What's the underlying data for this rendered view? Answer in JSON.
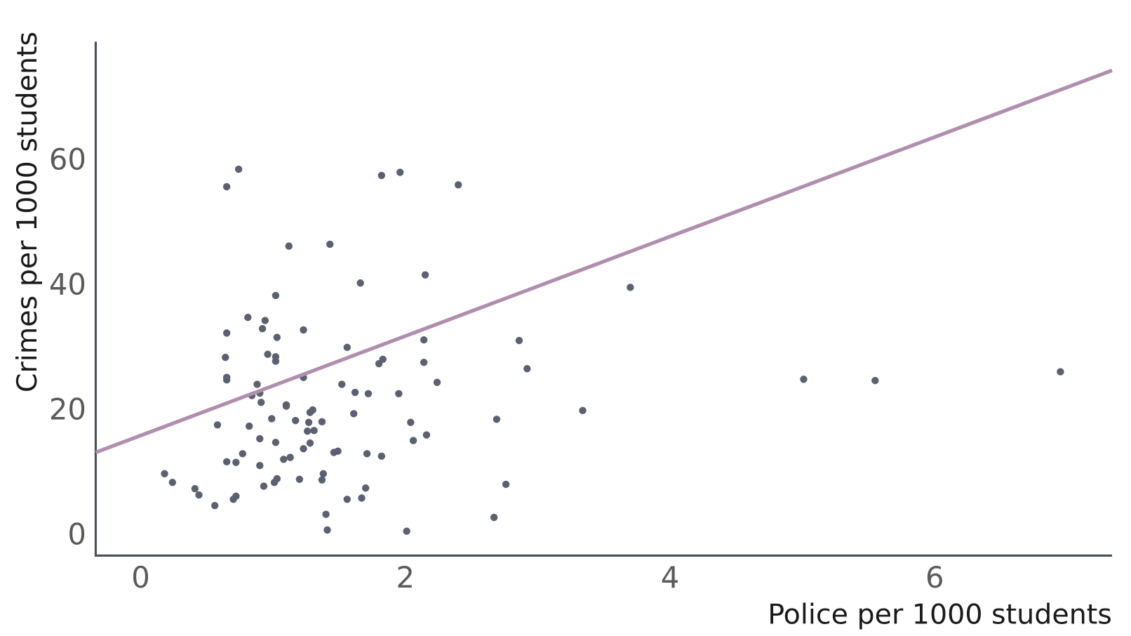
{
  "chart_data": {
    "type": "scatter",
    "x_label": "Police per 1000 students",
    "y_label": "Crimes per 1000 students",
    "x": [
      0.18,
      0.24,
      0.41,
      0.44,
      0.56,
      0.58,
      0.65,
      0.74,
      0.65,
      0.64,
      0.65,
      0.65,
      0.65,
      0.7,
      0.72,
      0.72,
      0.77,
      0.81,
      0.82,
      0.84,
      0.88,
      0.9,
      0.91,
      0.9,
      0.9,
      0.92,
      0.94,
      0.93,
      0.96,
      0.99,
      1.01,
      1.02,
      1.02,
      1.02,
      1.03,
      1.02,
      1.03,
      1.08,
      1.1,
      1.1,
      1.12,
      1.13,
      1.17,
      1.2,
      1.23,
      1.23,
      1.23,
      1.26,
      1.27,
      1.28,
      1.3,
      1.28,
      1.31,
      1.37,
      1.37,
      1.38,
      1.4,
      1.41,
      1.43,
      1.46,
      1.49,
      1.52,
      1.56,
      1.56,
      1.61,
      1.62,
      1.66,
      1.67,
      1.7,
      1.71,
      1.72,
      1.8,
      1.83,
      1.82,
      1.82,
      1.95,
      1.96,
      2.01,
      2.04,
      2.06,
      2.14,
      2.14,
      2.15,
      2.16,
      2.24,
      2.4,
      2.67,
      2.69,
      2.76,
      2.86,
      2.92,
      3.34,
      3.7,
      5.01,
      5.55,
      6.95
    ],
    "values": [
      9.7,
      8.3,
      7.3,
      6.3,
      4.6,
      17.5,
      55.6,
      58.4,
      32.2,
      28.3,
      25.1,
      24.7,
      11.6,
      5.6,
      6.1,
      11.5,
      12.9,
      34.7,
      17.3,
      22.2,
      24.0,
      22.6,
      21.1,
      15.3,
      11.0,
      32.9,
      34.2,
      7.7,
      28.8,
      18.5,
      8.3,
      38.2,
      28.4,
      27.7,
      31.5,
      14.7,
      8.9,
      12.0,
      20.7,
      20.5,
      46.1,
      12.3,
      18.2,
      8.8,
      32.7,
      25.1,
      13.7,
      16.5,
      17.9,
      19.5,
      19.9,
      14.6,
      16.6,
      18.0,
      8.7,
      9.7,
      3.2,
      0.7,
      46.4,
      13.1,
      13.3,
      24.0,
      29.9,
      5.6,
      19.3,
      22.7,
      40.2,
      5.8,
      7.4,
      12.9,
      22.5,
      27.3,
      28.0,
      57.4,
      12.5,
      22.5,
      57.9,
      0.5,
      17.9,
      15.0,
      31.1,
      27.5,
      41.5,
      15.9,
      24.3,
      55.9,
      2.7,
      18.4,
      8.0,
      31.0,
      26.5,
      19.8,
      39.5,
      24.8,
      24.6,
      26.0
    ],
    "color": "#5b6170",
    "fit": {
      "x": [
        -0.34,
        7.34
      ],
      "values": [
        13.1,
        74.2
      ],
      "color": "#b08fae"
    },
    "xlim": [
      -0.34,
      7.34
    ],
    "ylim": [
      -3.4,
      78.8
    ],
    "xticks": [
      0,
      2,
      4,
      6
    ],
    "yticks": [
      0,
      20,
      40,
      60
    ],
    "grid": false
  }
}
